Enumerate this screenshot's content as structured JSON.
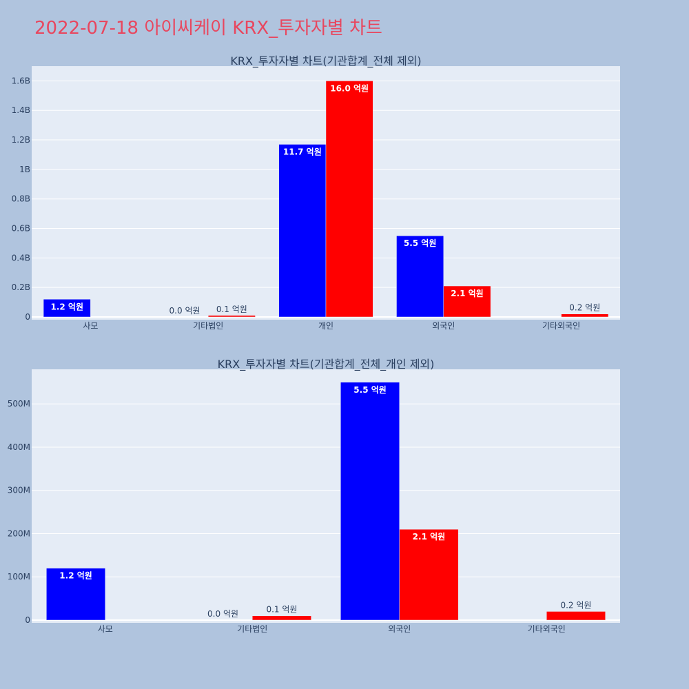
{
  "page": {
    "title": "2022-07-18 아이씨케이 KRX_투자자별 차트",
    "title_color": "#e8475f",
    "background": "#b0c4de",
    "plot_background": "#e5ecf6"
  },
  "chart_data": [
    {
      "type": "bar",
      "title": "KRX_투자자별 차트(기관합계_전체 제외)",
      "categories": [
        "사모",
        "기타법인",
        "개인",
        "외국인",
        "기타외국인"
      ],
      "series": [
        {
          "color": "#0000ff",
          "values": [
            120000000,
            0,
            1170000000,
            550000000,
            0
          ],
          "labels": [
            "1.2 억원",
            "0.0 억원",
            "11.7 억원",
            "5.5 억원",
            null
          ]
        },
        {
          "color": "#ff0000",
          "values": [
            0,
            10000000,
            1600000000,
            210000000,
            20000000
          ],
          "labels": [
            null,
            "0.1 억원",
            "16.0 억원",
            "2.1 억원",
            "0.2 억원"
          ]
        }
      ],
      "ylim": [
        0,
        1700000000
      ],
      "yticks": [
        0,
        200000000,
        400000000,
        600000000,
        800000000,
        1000000000,
        1200000000,
        1400000000,
        1600000000
      ],
      "yticklabels": [
        "0",
        "0.2B",
        "0.4B",
        "0.6B",
        "0.8B",
        "1B",
        "1.2B",
        "1.4B",
        "1.6B"
      ],
      "grid": true
    },
    {
      "type": "bar",
      "title": "KRX_투자자별 차트(기관합계_전체_개인 제외)",
      "categories": [
        "사모",
        "기타법인",
        "외국인",
        "기타외국인"
      ],
      "series": [
        {
          "color": "#0000ff",
          "values": [
            120000000,
            0,
            550000000,
            0
          ],
          "labels": [
            "1.2 억원",
            "0.0 억원",
            "5.5 억원",
            null
          ]
        },
        {
          "color": "#ff0000",
          "values": [
            0,
            10000000,
            210000000,
            20000000
          ],
          "labels": [
            null,
            "0.1 억원",
            "2.1 억원",
            "0.2 억원"
          ]
        }
      ],
      "ylim": [
        0,
        580000000
      ],
      "yticks": [
        0,
        100000000,
        200000000,
        300000000,
        400000000,
        500000000
      ],
      "yticklabels": [
        "0",
        "100M",
        "200M",
        "300M",
        "400M",
        "500M"
      ],
      "grid": true
    }
  ]
}
